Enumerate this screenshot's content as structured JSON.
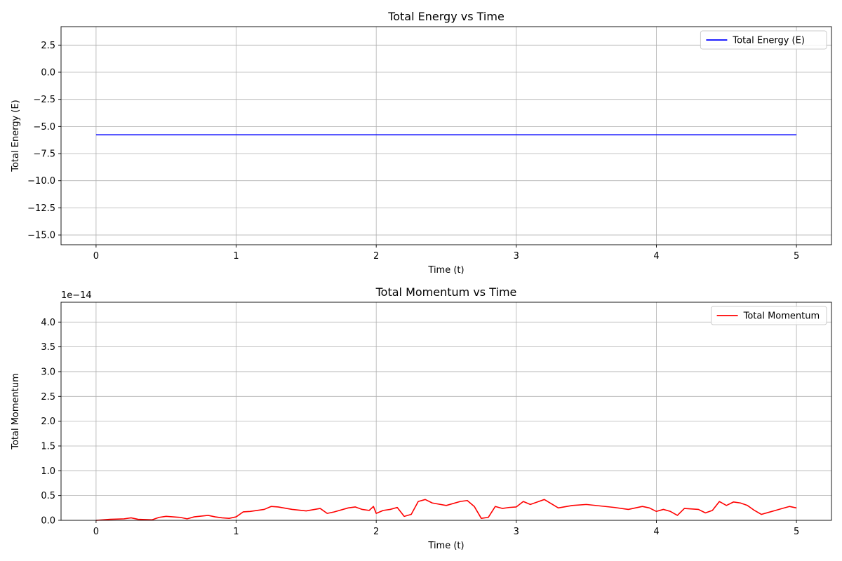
{
  "chart_data": [
    {
      "type": "line",
      "title": "Total Energy vs Time",
      "xlabel": "Time (t)",
      "ylabel": "Total Energy (E)",
      "xlim": [
        -0.25,
        5.25
      ],
      "ylim": [
        -15.9,
        4.2
      ],
      "xticks": [
        0,
        1,
        2,
        3,
        4,
        5
      ],
      "xtick_labels": [
        "0",
        "1",
        "2",
        "3",
        "4",
        "5"
      ],
      "yticks": [
        2.5,
        0.0,
        -2.5,
        -5.0,
        -7.5,
        -10.0,
        -12.5,
        -15.0
      ],
      "ytick_labels": [
        "2.5",
        "0.0",
        "−2.5",
        "−5.0",
        "−7.5",
        "−10.0",
        "−12.5",
        "−15.0"
      ],
      "offset_text": "",
      "grid": true,
      "legend": "top-right",
      "series": [
        {
          "name": "Total Energy (E)",
          "color": "#0000ff",
          "x": [
            0,
            1,
            2,
            3,
            4,
            5
          ],
          "y": [
            -5.77,
            -5.77,
            -5.77,
            -5.77,
            -5.77,
            -5.77
          ]
        }
      ]
    },
    {
      "type": "line",
      "title": "Total Momentum vs Time",
      "xlabel": "Time (t)",
      "ylabel": "Total Momentum",
      "xlim": [
        -0.25,
        5.25
      ],
      "ylim": [
        0,
        4.4
      ],
      "xticks": [
        0,
        1,
        2,
        3,
        4,
        5
      ],
      "xtick_labels": [
        "0",
        "1",
        "2",
        "3",
        "4",
        "5"
      ],
      "yticks": [
        0.0,
        0.5,
        1.0,
        1.5,
        2.0,
        2.5,
        3.0,
        3.5,
        4.0
      ],
      "ytick_labels": [
        "0.0",
        "0.5",
        "1.0",
        "1.5",
        "2.0",
        "2.5",
        "3.0",
        "3.5",
        "4.0"
      ],
      "offset_text": "1e−14",
      "grid": true,
      "legend": "top-right",
      "series": [
        {
          "name": "Total Momentum",
          "color": "#ff0000",
          "x": [
            0,
            0.1,
            0.2,
            0.25,
            0.3,
            0.4,
            0.45,
            0.5,
            0.6,
            0.65,
            0.7,
            0.8,
            0.85,
            0.9,
            0.95,
            1.0,
            1.05,
            1.1,
            1.2,
            1.25,
            1.3,
            1.4,
            1.5,
            1.6,
            1.65,
            1.7,
            1.8,
            1.85,
            1.9,
            1.95,
            1.98,
            2.0,
            2.05,
            2.1,
            2.15,
            2.2,
            2.25,
            2.3,
            2.35,
            2.4,
            2.5,
            2.6,
            2.65,
            2.7,
            2.75,
            2.8,
            2.85,
            2.9,
            2.95,
            3.0,
            3.05,
            3.1,
            3.2,
            3.3,
            3.4,
            3.5,
            3.6,
            3.7,
            3.8,
            3.9,
            3.95,
            4.0,
            4.05,
            4.1,
            4.15,
            4.2,
            4.3,
            4.35,
            4.4,
            4.45,
            4.5,
            4.55,
            4.6,
            4.65,
            4.7,
            4.75,
            4.8,
            4.85,
            4.9,
            4.95,
            5.0
          ],
          "y": [
            0.0,
            0.02,
            0.03,
            0.05,
            0.02,
            0.01,
            0.06,
            0.08,
            0.06,
            0.03,
            0.07,
            0.1,
            0.07,
            0.05,
            0.04,
            0.07,
            0.17,
            0.18,
            0.22,
            0.28,
            0.27,
            0.22,
            0.19,
            0.24,
            0.14,
            0.17,
            0.25,
            0.27,
            0.22,
            0.2,
            0.28,
            0.14,
            0.2,
            0.22,
            0.26,
            0.08,
            0.12,
            0.38,
            0.42,
            0.35,
            0.3,
            0.38,
            0.4,
            0.28,
            0.04,
            0.06,
            0.28,
            0.24,
            0.26,
            0.27,
            0.38,
            0.32,
            0.42,
            0.25,
            0.3,
            0.32,
            0.29,
            0.26,
            0.22,
            0.28,
            0.25,
            0.18,
            0.22,
            0.18,
            0.1,
            0.24,
            0.22,
            0.15,
            0.2,
            0.38,
            0.3,
            0.37,
            0.35,
            0.3,
            0.2,
            0.12,
            0.16,
            0.2,
            0.24,
            0.28,
            0.25
          ]
        }
      ]
    }
  ]
}
